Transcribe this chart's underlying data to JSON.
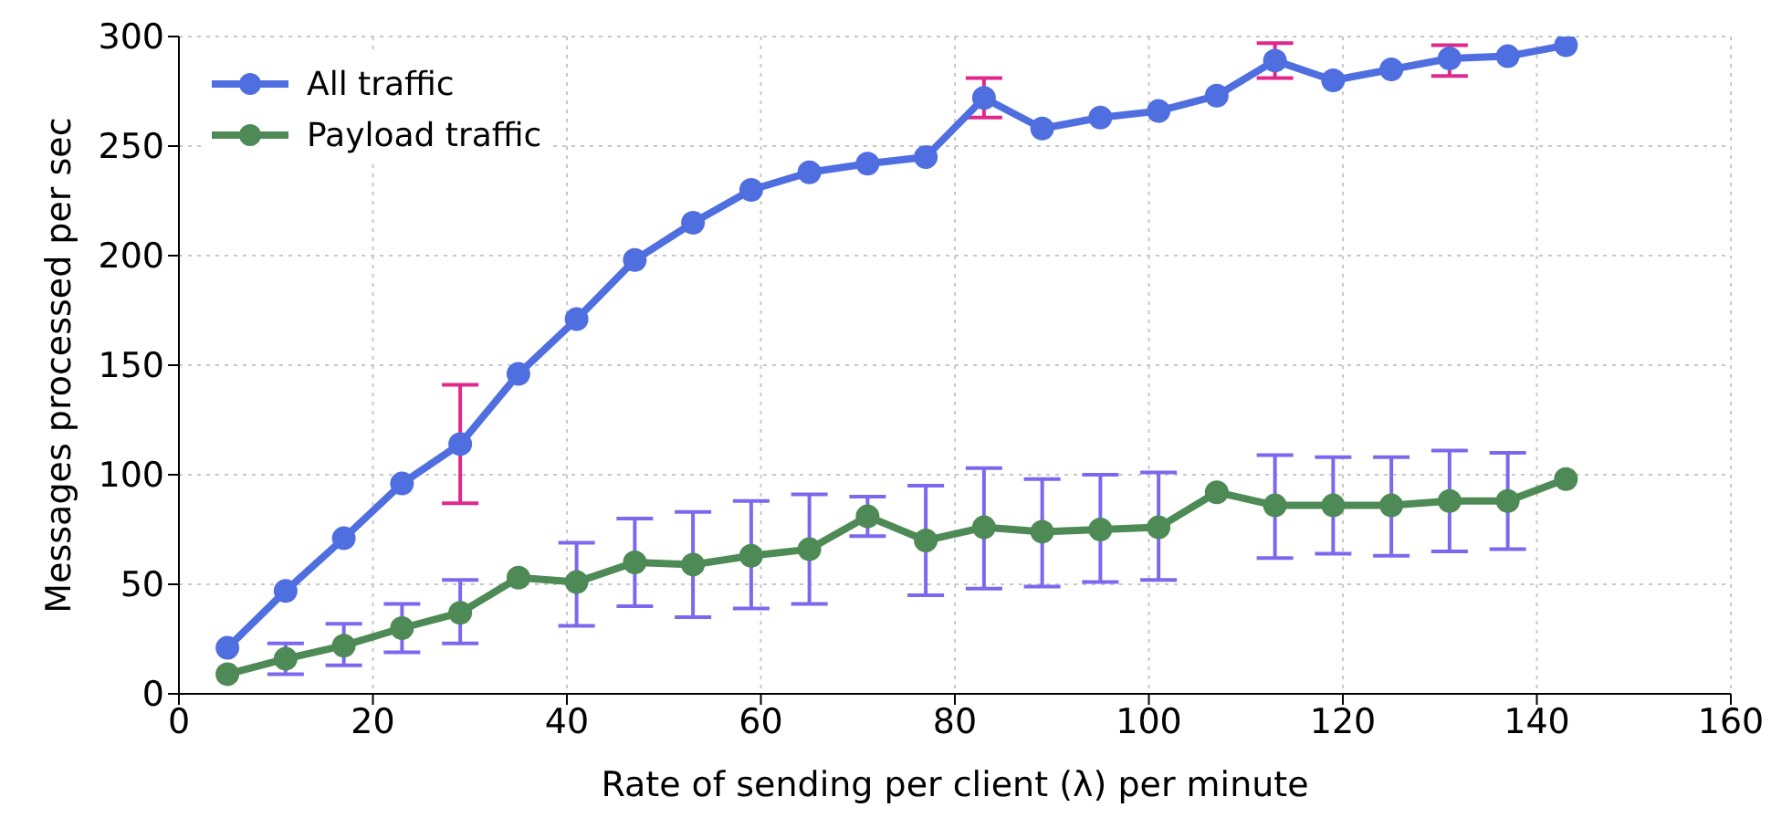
{
  "chart_data": {
    "type": "line",
    "xlabel": "Rate of sending per client (λ) per minute",
    "ylabel": "Messages processed per sec",
    "x": [
      5,
      11,
      17,
      23,
      29,
      35,
      41,
      47,
      53,
      59,
      65,
      71,
      77,
      83,
      89,
      95,
      101,
      107,
      113,
      119,
      125,
      131,
      137,
      143
    ],
    "series": [
      {
        "name": "All traffic",
        "color": "#4f6ee0",
        "values": [
          21,
          47,
          71,
          96,
          114,
          146,
          171,
          198,
          215,
          230,
          238,
          242,
          245,
          272,
          258,
          263,
          266,
          273,
          289,
          280,
          285,
          290,
          291,
          296
        ],
        "errors": [
          null,
          null,
          null,
          null,
          [
            87,
            141
          ],
          null,
          null,
          null,
          null,
          null,
          null,
          null,
          null,
          [
            263,
            281
          ],
          null,
          null,
          null,
          null,
          [
            281,
            297
          ],
          null,
          null,
          [
            282,
            296
          ],
          null,
          null
        ]
      },
      {
        "name": "Payload traffic",
        "color": "#4e8a55",
        "values": [
          9,
          16,
          22,
          30,
          37,
          53,
          51,
          60,
          59,
          63,
          66,
          81,
          70,
          76,
          74,
          75,
          76,
          92,
          86,
          86,
          86,
          88,
          88,
          98
        ],
        "errors": [
          null,
          [
            9,
            23
          ],
          [
            13,
            32
          ],
          [
            19,
            41
          ],
          [
            23,
            52
          ],
          null,
          [
            31,
            69
          ],
          [
            40,
            80
          ],
          [
            35,
            83
          ],
          [
            39,
            88
          ],
          [
            41,
            91
          ],
          [
            72,
            90
          ],
          [
            45,
            95
          ],
          [
            48,
            103
          ],
          [
            49,
            98
          ],
          [
            51,
            100
          ],
          [
            52,
            101
          ],
          null,
          [
            62,
            109
          ],
          [
            64,
            108
          ],
          [
            63,
            108
          ],
          [
            65,
            111
          ],
          [
            66,
            110
          ],
          null
        ]
      }
    ],
    "xlim": [
      0,
      160
    ],
    "xticks": [
      0,
      20,
      40,
      60,
      80,
      100,
      120,
      140,
      160
    ],
    "ylim": [
      0,
      300
    ],
    "yticks": [
      0,
      50,
      100,
      150,
      200,
      250,
      300
    ],
    "grid": true,
    "legend": "top left",
    "marker": "circle",
    "line_style": "solid"
  }
}
